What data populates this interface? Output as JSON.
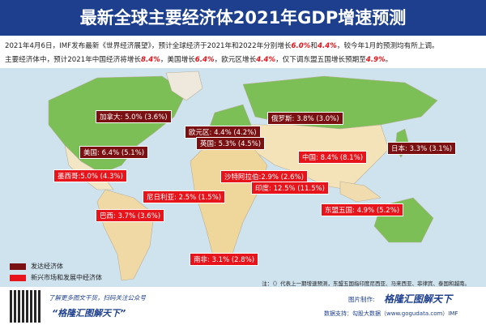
{
  "title": "最新全球主要经济体2021年GDP增速预测",
  "intro": {
    "line1": [
      "2021年4月6日，IMF发布最新《世界经济展望》，预计全球经济于2021年和2022年分别增长",
      "6.0%",
      "和",
      "4.4%",
      "，较今年1月的预测均有所上调。"
    ],
    "line2": [
      "主要经济体中，预计2021年中国经济将增长",
      "8.4%",
      "，美国增长",
      "6.4%",
      "，欧元区增长",
      "4.4%",
      "，仅下调东盟五国增长预期至",
      "4.9%",
      "。"
    ]
  },
  "developed_labels": [
    "加拿大: 5.0%  (3.6%)",
    "欧元区: 4.4%  (4.2%)",
    "英国: 5.3%  (4.5%)",
    "美国: 6.4%  (5.1%)",
    "俄罗斯: 3.8%  (3.0%)",
    "日本: 3.3%  (3.1%)"
  ],
  "emerging_labels": [
    "中国: 8.4%  (8.1%)",
    "墨西哥:5.0%  (4.3%)",
    "沙特阿拉伯:2.9%  (2.6%)",
    "印度: 12.5%  (11.5%)",
    "尼日利亚: 2.5%  (1.5%)",
    "东盟五国: 4.9%  (5.2%)",
    "巴西: 3.7%  (3.6%)",
    "南非: 3.1%  (2.8%)"
  ],
  "legend": [
    "发达经济体",
    "新兴市场和发展中经济体"
  ],
  "note": "注：（）代表上一期增速预测，东盟五国指印度尼西亚、马来西亚、菲律宾、泰国和越南。",
  "footer": {
    "qr_caption": "了解更多图文干货，扫码关注公众号",
    "account": "“格隆汇图解天下”",
    "made_by": "图片制作:",
    "brand": "格隆汇图解天下",
    "source": "数据支持：勾股大数据（www.gogudata.com）IMF"
  }
}
